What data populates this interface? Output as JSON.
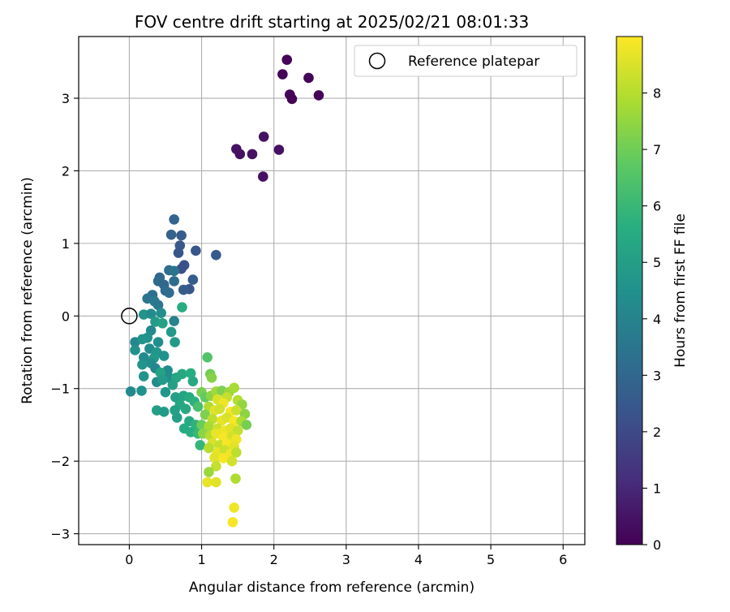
{
  "chart_data": {
    "type": "scatter",
    "title": "FOV centre drift starting at 2025/02/21 08:01:33",
    "xlabel": "Angular distance from reference (arcmin)",
    "ylabel": "Rotation from reference (arcmin)",
    "xlim": [
      -0.7,
      6.3
    ],
    "ylim": [
      -3.15,
      3.85
    ],
    "x_ticks": [
      0,
      1,
      2,
      3,
      4,
      5,
      6
    ],
    "x_tick_labels": [
      "0",
      "1",
      "2",
      "3",
      "4",
      "5",
      "6"
    ],
    "y_ticks": [
      -3,
      -2,
      -1,
      0,
      1,
      2,
      3
    ],
    "y_tick_labels": [
      "−3",
      "−2",
      "−1",
      "0",
      "1",
      "2",
      "3"
    ],
    "grid": true,
    "legend": {
      "position": "top-right",
      "entries": [
        "Reference platepar"
      ]
    },
    "reference_point": {
      "x": 0,
      "y": 0,
      "label": "Reference platepar"
    },
    "colorbar": {
      "label": "Hours from first FF file",
      "range": [
        0,
        9
      ],
      "ticks": [
        0,
        1,
        2,
        3,
        4,
        5,
        6,
        7,
        8
      ],
      "tick_labels": [
        "0",
        "1",
        "2",
        "3",
        "4",
        "5",
        "6",
        "7",
        "8"
      ],
      "colormap": "viridis"
    },
    "points": [
      {
        "x": 2.18,
        "y": 3.53,
        "h": 0.1
      },
      {
        "x": 2.12,
        "y": 3.33,
        "h": 0.1
      },
      {
        "x": 2.48,
        "y": 3.28,
        "h": 0.1
      },
      {
        "x": 2.22,
        "y": 3.05,
        "h": 0.1
      },
      {
        "x": 2.25,
        "y": 2.99,
        "h": 0.1
      },
      {
        "x": 2.62,
        "y": 3.04,
        "h": 0.1
      },
      {
        "x": 1.86,
        "y": 2.47,
        "h": 0.4
      },
      {
        "x": 1.48,
        "y": 2.3,
        "h": 0.4
      },
      {
        "x": 1.53,
        "y": 2.23,
        "h": 0.4
      },
      {
        "x": 1.7,
        "y": 2.23,
        "h": 0.4
      },
      {
        "x": 2.07,
        "y": 2.29,
        "h": 0.4
      },
      {
        "x": 1.85,
        "y": 1.92,
        "h": 0.4
      },
      {
        "x": 0.62,
        "y": 1.33,
        "h": 2.9
      },
      {
        "x": 0.58,
        "y": 1.12,
        "h": 2.8
      },
      {
        "x": 0.72,
        "y": 1.11,
        "h": 2.6
      },
      {
        "x": 0.7,
        "y": 0.97,
        "h": 2.5
      },
      {
        "x": 0.68,
        "y": 0.87,
        "h": 2.4
      },
      {
        "x": 0.92,
        "y": 0.9,
        "h": 2.4
      },
      {
        "x": 1.2,
        "y": 0.84,
        "h": 2.5
      },
      {
        "x": 0.76,
        "y": 0.7,
        "h": 2.3
      },
      {
        "x": 0.72,
        "y": 0.65,
        "h": 2.2
      },
      {
        "x": 0.55,
        "y": 0.63,
        "h": 3.2
      },
      {
        "x": 0.62,
        "y": 0.62,
        "h": 3.4
      },
      {
        "x": 0.42,
        "y": 0.53,
        "h": 3.0
      },
      {
        "x": 0.4,
        "y": 0.48,
        "h": 3.1
      },
      {
        "x": 0.48,
        "y": 0.43,
        "h": 3.0
      },
      {
        "x": 0.62,
        "y": 0.48,
        "h": 3.2
      },
      {
        "x": 0.88,
        "y": 0.5,
        "h": 2.6
      },
      {
        "x": 0.83,
        "y": 0.37,
        "h": 2.4
      },
      {
        "x": 0.75,
        "y": 0.36,
        "h": 2.6
      },
      {
        "x": 0.5,
        "y": 0.35,
        "h": 3.1
      },
      {
        "x": 0.55,
        "y": 0.32,
        "h": 3.2
      },
      {
        "x": 0.32,
        "y": 0.29,
        "h": 3.3
      },
      {
        "x": 0.25,
        "y": 0.24,
        "h": 3.5
      },
      {
        "x": 0.35,
        "y": 0.2,
        "h": 3.6
      },
      {
        "x": 0.4,
        "y": 0.15,
        "h": 3.6
      },
      {
        "x": 0.73,
        "y": 0.12,
        "h": 5.6
      },
      {
        "x": 0.2,
        "y": 0.02,
        "h": 4.6
      },
      {
        "x": 0.3,
        "y": 0.03,
        "h": 4.3
      },
      {
        "x": 0.44,
        "y": 0.04,
        "h": 4.4
      },
      {
        "x": 0.62,
        "y": -0.07,
        "h": 4.0
      },
      {
        "x": 0.36,
        "y": -0.08,
        "h": 4.9
      },
      {
        "x": 0.46,
        "y": -0.1,
        "h": 5.1
      },
      {
        "x": 0.58,
        "y": -0.22,
        "h": 4.8
      },
      {
        "x": 0.3,
        "y": -0.2,
        "h": 4.2
      },
      {
        "x": 0.25,
        "y": -0.3,
        "h": 4.5
      },
      {
        "x": 0.08,
        "y": -0.36,
        "h": 4.1
      },
      {
        "x": 0.18,
        "y": -0.32,
        "h": 4.6
      },
      {
        "x": 0.4,
        "y": -0.36,
        "h": 4.4
      },
      {
        "x": 0.63,
        "y": -0.36,
        "h": 4.8
      },
      {
        "x": 0.08,
        "y": -0.47,
        "h": 4.5
      },
      {
        "x": 0.28,
        "y": -0.45,
        "h": 4.3
      },
      {
        "x": 0.38,
        "y": -0.5,
        "h": 4.7
      },
      {
        "x": 0.48,
        "y": -0.55,
        "h": 4.5
      },
      {
        "x": 0.2,
        "y": -0.57,
        "h": 4.2
      },
      {
        "x": 0.34,
        "y": -0.58,
        "h": 4.8
      },
      {
        "x": 0.3,
        "y": -0.65,
        "h": 4.4
      },
      {
        "x": 0.18,
        "y": -0.67,
        "h": 4.6
      },
      {
        "x": 0.36,
        "y": -0.72,
        "h": 4.1
      },
      {
        "x": 0.53,
        "y": -0.75,
        "h": 4.3
      },
      {
        "x": 0.43,
        "y": -0.78,
        "h": 5.2
      },
      {
        "x": 0.2,
        "y": -0.83,
        "h": 4.6
      },
      {
        "x": 0.55,
        "y": -0.85,
        "h": 4.4
      },
      {
        "x": 0.65,
        "y": -0.85,
        "h": 5.3
      },
      {
        "x": 0.73,
        "y": -0.8,
        "h": 5.4
      },
      {
        "x": 0.85,
        "y": -0.79,
        "h": 5.6
      },
      {
        "x": 0.38,
        "y": -0.91,
        "h": 4.3
      },
      {
        "x": 0.46,
        "y": -0.88,
        "h": 4.9
      },
      {
        "x": 0.6,
        "y": -0.95,
        "h": 5.1
      },
      {
        "x": 0.88,
        "y": -0.9,
        "h": 5.4
      },
      {
        "x": 0.02,
        "y": -1.04,
        "h": 4.2
      },
      {
        "x": 0.17,
        "y": -1.03,
        "h": 4.5
      },
      {
        "x": 0.5,
        "y": -1.05,
        "h": 4.7
      },
      {
        "x": 0.64,
        "y": -1.12,
        "h": 5.0
      },
      {
        "x": 0.75,
        "y": -1.1,
        "h": 5.2
      },
      {
        "x": 0.83,
        "y": -1.12,
        "h": 5.5
      },
      {
        "x": 0.9,
        "y": -1.18,
        "h": 5.7
      },
      {
        "x": 0.7,
        "y": -1.22,
        "h": 5.3
      },
      {
        "x": 0.38,
        "y": -1.3,
        "h": 5.0
      },
      {
        "x": 0.48,
        "y": -1.32,
        "h": 4.9
      },
      {
        "x": 0.63,
        "y": -1.3,
        "h": 5.1
      },
      {
        "x": 0.78,
        "y": -1.28,
        "h": 5.4
      },
      {
        "x": 0.95,
        "y": -1.25,
        "h": 6.3
      },
      {
        "x": 0.66,
        "y": -1.4,
        "h": 5.0
      },
      {
        "x": 0.83,
        "y": -1.45,
        "h": 5.4
      },
      {
        "x": 0.92,
        "y": -1.5,
        "h": 5.8
      },
      {
        "x": 0.76,
        "y": -1.55,
        "h": 5.5
      },
      {
        "x": 0.85,
        "y": -1.6,
        "h": 5.6
      },
      {
        "x": 0.95,
        "y": -1.62,
        "h": 6.0
      },
      {
        "x": 0.98,
        "y": -1.78,
        "h": 5.9
      },
      {
        "x": 1.08,
        "y": -0.57,
        "h": 6.5
      },
      {
        "x": 1.12,
        "y": -0.8,
        "h": 7.0
      },
      {
        "x": 1.14,
        "y": -0.85,
        "h": 7.3
      },
      {
        "x": 1.0,
        "y": -1.05,
        "h": 7.1
      },
      {
        "x": 1.05,
        "y": -1.12,
        "h": 6.8
      },
      {
        "x": 1.13,
        "y": -1.1,
        "h": 7.4
      },
      {
        "x": 1.2,
        "y": -1.04,
        "h": 7.7
      },
      {
        "x": 1.28,
        "y": -1.03,
        "h": 7.2
      },
      {
        "x": 1.38,
        "y": -1.05,
        "h": 7.6
      },
      {
        "x": 1.45,
        "y": -0.99,
        "h": 7.8
      },
      {
        "x": 1.35,
        "y": -1.12,
        "h": 8.2
      },
      {
        "x": 1.22,
        "y": -1.15,
        "h": 8.5
      },
      {
        "x": 1.3,
        "y": -1.2,
        "h": 8.8
      },
      {
        "x": 1.5,
        "y": -1.16,
        "h": 8.0
      },
      {
        "x": 1.56,
        "y": -1.22,
        "h": 7.5
      },
      {
        "x": 1.1,
        "y": -1.25,
        "h": 7.9
      },
      {
        "x": 1.18,
        "y": -1.3,
        "h": 8.6
      },
      {
        "x": 1.25,
        "y": -1.28,
        "h": 8.4
      },
      {
        "x": 1.4,
        "y": -1.32,
        "h": 8.9
      },
      {
        "x": 1.48,
        "y": -1.3,
        "h": 8.3
      },
      {
        "x": 1.6,
        "y": -1.35,
        "h": 7.4
      },
      {
        "x": 1.05,
        "y": -1.36,
        "h": 7.2
      },
      {
        "x": 1.15,
        "y": -1.42,
        "h": 8.1
      },
      {
        "x": 1.28,
        "y": -1.44,
        "h": 8.7
      },
      {
        "x": 1.35,
        "y": -1.4,
        "h": 8.5
      },
      {
        "x": 1.45,
        "y": -1.45,
        "h": 8.9
      },
      {
        "x": 1.55,
        "y": -1.45,
        "h": 7.9
      },
      {
        "x": 1.62,
        "y": -1.5,
        "h": 7.1
      },
      {
        "x": 1.0,
        "y": -1.5,
        "h": 6.9
      },
      {
        "x": 1.1,
        "y": -1.52,
        "h": 7.8
      },
      {
        "x": 1.22,
        "y": -1.55,
        "h": 8.3
      },
      {
        "x": 1.32,
        "y": -1.58,
        "h": 8.8
      },
      {
        "x": 1.4,
        "y": -1.55,
        "h": 8.6
      },
      {
        "x": 1.5,
        "y": -1.58,
        "h": 8.2
      },
      {
        "x": 1.02,
        "y": -1.62,
        "h": 7.4
      },
      {
        "x": 1.12,
        "y": -1.65,
        "h": 8.0
      },
      {
        "x": 1.2,
        "y": -1.62,
        "h": 8.7
      },
      {
        "x": 1.3,
        "y": -1.68,
        "h": 8.9
      },
      {
        "x": 1.42,
        "y": -1.66,
        "h": 8.4
      },
      {
        "x": 1.48,
        "y": -1.7,
        "h": 8.8
      },
      {
        "x": 1.15,
        "y": -1.75,
        "h": 8.5
      },
      {
        "x": 1.25,
        "y": -1.78,
        "h": 8.2
      },
      {
        "x": 1.35,
        "y": -1.76,
        "h": 8.9
      },
      {
        "x": 1.45,
        "y": -1.8,
        "h": 8.6
      },
      {
        "x": 1.1,
        "y": -1.82,
        "h": 8.0
      },
      {
        "x": 1.22,
        "y": -1.88,
        "h": 8.7
      },
      {
        "x": 1.32,
        "y": -1.85,
        "h": 8.3
      },
      {
        "x": 1.4,
        "y": -1.9,
        "h": 8.8
      },
      {
        "x": 1.48,
        "y": -1.88,
        "h": 8.1
      },
      {
        "x": 1.18,
        "y": -1.95,
        "h": 8.6
      },
      {
        "x": 1.3,
        "y": -1.96,
        "h": 8.9
      },
      {
        "x": 1.42,
        "y": -2.0,
        "h": 8.4
      },
      {
        "x": 1.2,
        "y": -2.07,
        "h": 8.2
      },
      {
        "x": 1.1,
        "y": -2.15,
        "h": 7.6
      },
      {
        "x": 1.47,
        "y": -2.24,
        "h": 7.9
      },
      {
        "x": 1.08,
        "y": -2.29,
        "h": 8.7
      },
      {
        "x": 1.2,
        "y": -2.29,
        "h": 8.6
      },
      {
        "x": 1.45,
        "y": -2.64,
        "h": 8.8
      },
      {
        "x": 1.43,
        "y": -2.84,
        "h": 8.9
      }
    ]
  }
}
